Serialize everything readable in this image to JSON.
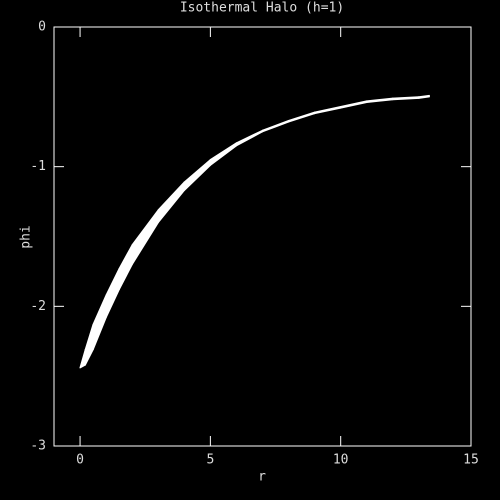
{
  "chart_data": {
    "type": "band",
    "title": "Isothermal Halo (h=1)",
    "x_label": "r",
    "y_label": "phi",
    "x": [
      0,
      0.2,
      0.5,
      1,
      1.5,
      2,
      3,
      4,
      5,
      6,
      7,
      8,
      9,
      10,
      11,
      12,
      13,
      13.4
    ],
    "upper": [
      -2.44,
      -2.31,
      -2.13,
      -1.92,
      -1.73,
      -1.56,
      -1.31,
      -1.11,
      -0.95,
      -0.83,
      -0.74,
      -0.67,
      -0.61,
      -0.57,
      -0.53,
      -0.51,
      -0.5,
      -0.49
    ],
    "lower": [
      -2.44,
      -2.42,
      -2.31,
      -2.08,
      -1.88,
      -1.7,
      -1.4,
      -1.17,
      -0.99,
      -0.85,
      -0.75,
      -0.68,
      -0.62,
      -0.58,
      -0.54,
      -0.52,
      -0.51,
      -0.5
    ],
    "color": "#ffffff",
    "xlim": [
      -1,
      15
    ],
    "xticks": [
      0,
      5,
      10,
      15
    ],
    "ylim": [
      -3,
      0
    ],
    "yticks": [
      0,
      -1,
      -2,
      -3
    ]
  }
}
